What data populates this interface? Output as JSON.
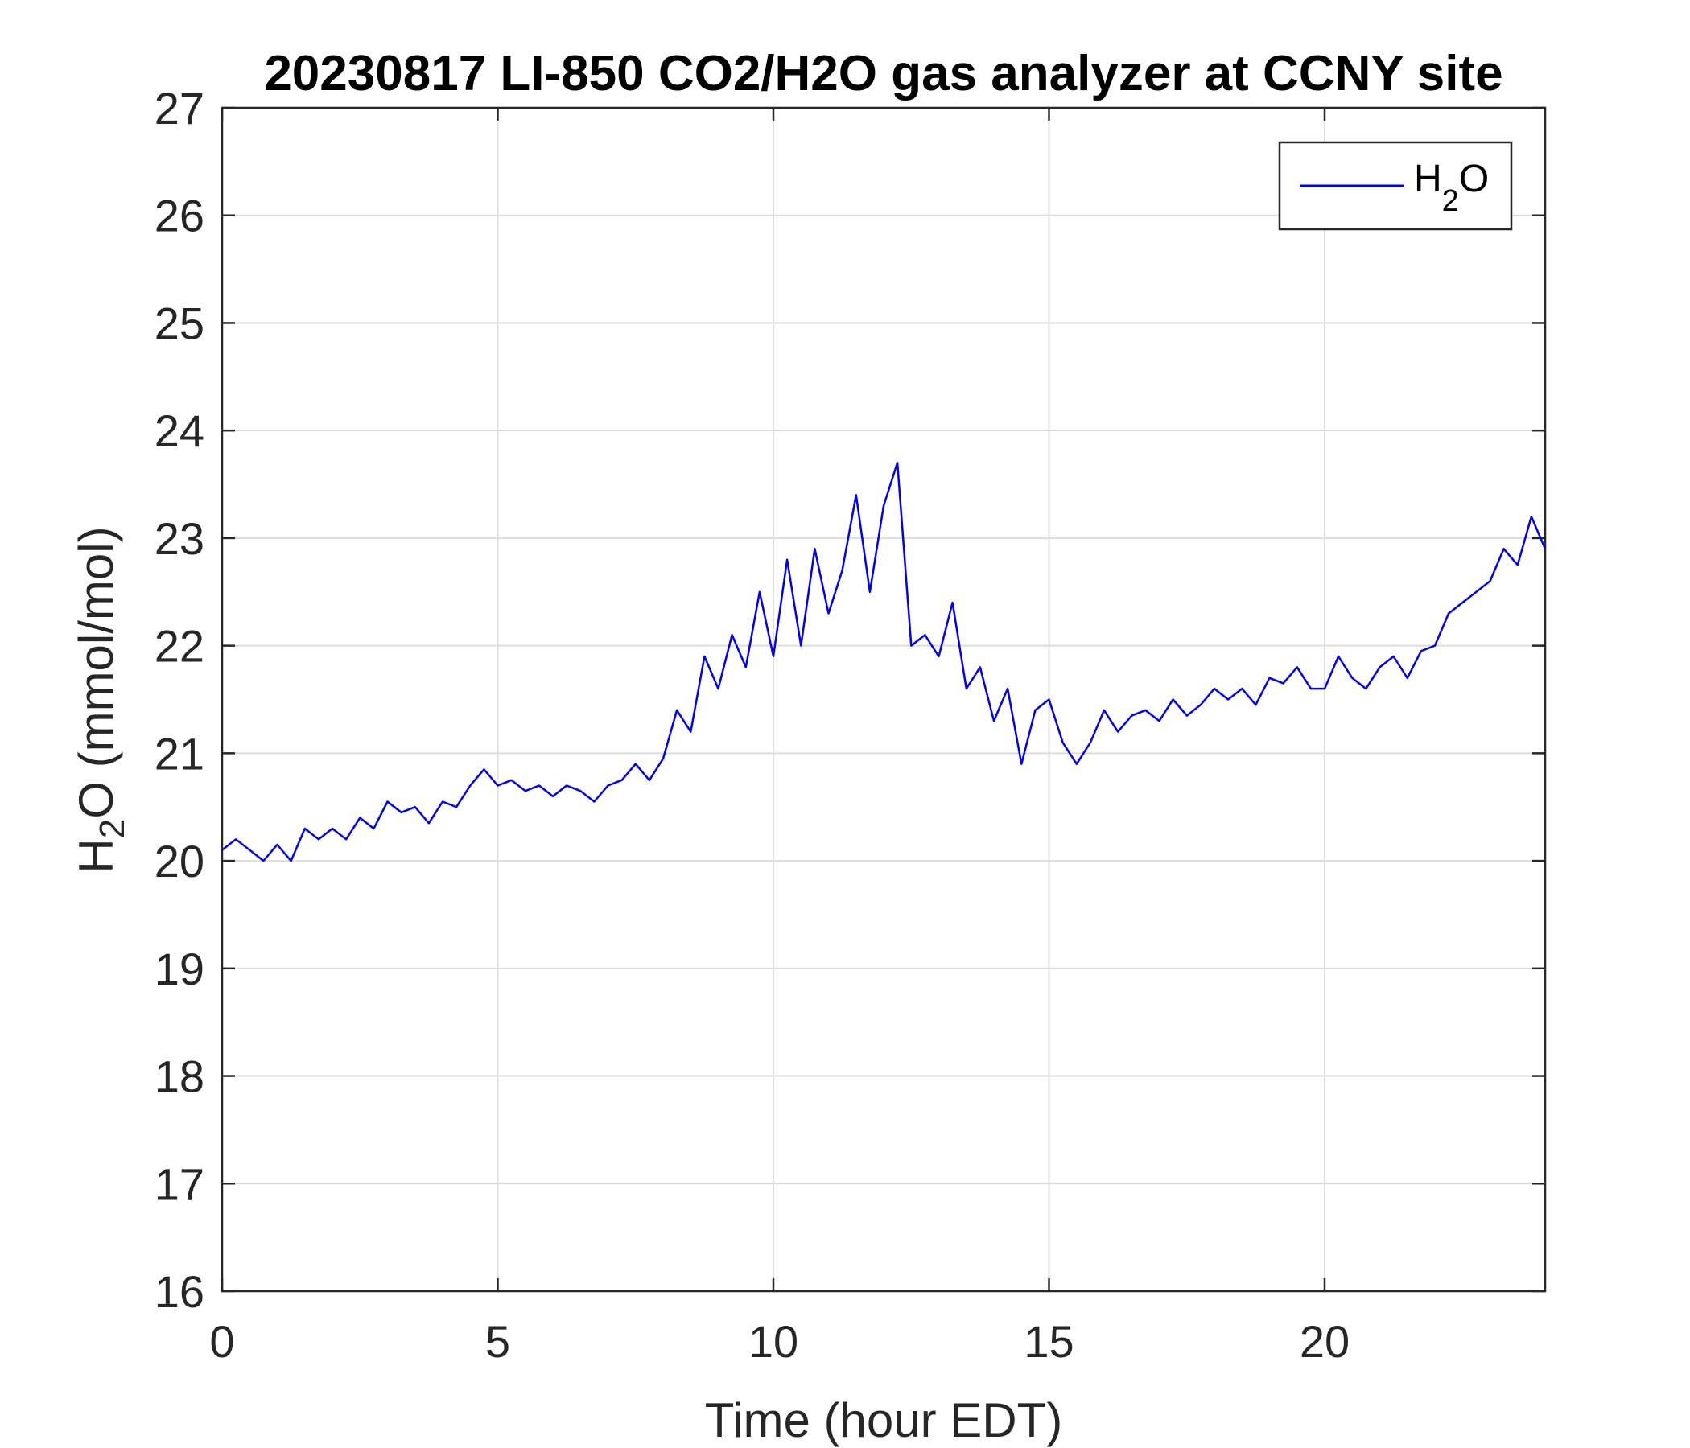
{
  "chart_data": {
    "type": "line",
    "title": "20230817 LI-850 CO2/H2O gas analyzer at CCNY site",
    "xlabel": "Time (hour EDT)",
    "ylabel_main": "H",
    "ylabel_sub": "2",
    "ylabel_rest": "O (mmol/mol)",
    "xlim": [
      0,
      24
    ],
    "ylim": [
      16,
      27
    ],
    "xticks": [
      0,
      5,
      10,
      15,
      20
    ],
    "yticks": [
      16,
      17,
      18,
      19,
      20,
      21,
      22,
      23,
      24,
      25,
      26,
      27
    ],
    "grid": true,
    "legend_position": "top-right",
    "series": [
      {
        "name": "H2O",
        "legend_main": "H",
        "legend_sub": "2",
        "legend_rest": "O",
        "color": "#0000ff",
        "x": [
          0,
          0.25,
          0.5,
          0.75,
          1,
          1.25,
          1.5,
          1.75,
          2,
          2.25,
          2.5,
          2.75,
          3,
          3.25,
          3.5,
          3.75,
          4,
          4.25,
          4.5,
          4.75,
          5,
          5.25,
          5.5,
          5.75,
          6,
          6.25,
          6.5,
          6.75,
          7,
          7.25,
          7.5,
          7.75,
          8,
          8.25,
          8.5,
          8.75,
          9,
          9.25,
          9.5,
          9.75,
          10,
          10.25,
          10.5,
          10.75,
          11,
          11.25,
          11.5,
          11.75,
          12,
          12.25,
          12.5,
          12.75,
          13,
          13.25,
          13.5,
          13.75,
          14,
          14.25,
          14.5,
          14.75,
          15,
          15.25,
          15.5,
          15.75,
          16,
          16.25,
          16.5,
          16.75,
          17,
          17.25,
          17.5,
          17.75,
          18,
          18.25,
          18.5,
          18.75,
          19,
          19.25,
          19.5,
          19.75,
          20,
          20.25,
          20.5,
          20.75,
          21,
          21.25,
          21.5,
          21.75,
          22,
          22.25,
          22.5,
          22.75,
          23,
          23.25,
          23.5,
          23.75,
          24
        ],
        "y": [
          20.1,
          20.2,
          20.1,
          20.0,
          20.15,
          20.0,
          20.3,
          20.2,
          20.3,
          20.2,
          20.4,
          20.3,
          20.55,
          20.45,
          20.5,
          20.35,
          20.55,
          20.5,
          20.7,
          20.85,
          20.7,
          20.75,
          20.65,
          20.7,
          20.6,
          20.7,
          20.65,
          20.55,
          20.7,
          20.75,
          20.9,
          20.75,
          20.95,
          21.4,
          21.2,
          21.9,
          21.6,
          22.1,
          21.8,
          22.5,
          21.9,
          22.8,
          22.0,
          22.9,
          22.3,
          22.7,
          23.4,
          22.5,
          23.3,
          23.7,
          22.0,
          22.1,
          21.9,
          22.4,
          21.6,
          21.8,
          21.3,
          21.6,
          20.9,
          21.4,
          21.5,
          21.1,
          20.9,
          21.1,
          21.4,
          21.2,
          21.35,
          21.4,
          21.3,
          21.5,
          21.35,
          21.45,
          21.6,
          21.5,
          21.6,
          21.45,
          21.7,
          21.65,
          21.8,
          21.6,
          21.6,
          21.9,
          21.7,
          21.6,
          21.8,
          21.9,
          21.7,
          21.95,
          22.0,
          22.3,
          22.4,
          22.5,
          22.6,
          22.9,
          22.75,
          23.2,
          22.9
        ]
      }
    ]
  }
}
